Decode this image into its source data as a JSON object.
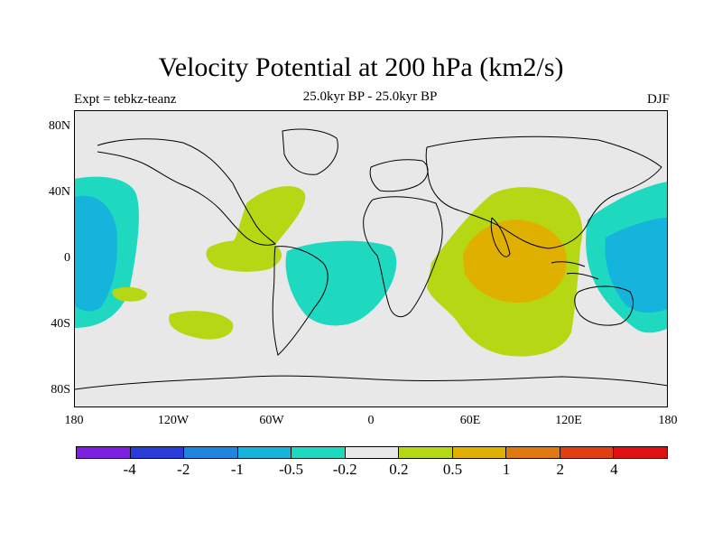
{
  "title": "Velocity Potential at 200 hPa (km2/s)",
  "subtitle": "25.0kyr BP - 25.0kyr BP",
  "left_label": "Expt = tebkz-teanz",
  "right_label": "DJF",
  "lat_labels": [
    "80N",
    "40N",
    "0",
    "40S",
    "80S"
  ],
  "lon_labels": [
    "180",
    "120W",
    "60W",
    "0",
    "60E",
    "120E",
    "180"
  ],
  "colorbar": {
    "colors": [
      "#7f1fe0",
      "#2a3cd8",
      "#1f86e0",
      "#14b4dc",
      "#1ed8c0",
      "#e8e8e8",
      "#b6d814",
      "#e0b000",
      "#e07a10",
      "#e04010",
      "#e01010"
    ],
    "labels": [
      "-4",
      "-2",
      "-1",
      "-0.5",
      "-0.2",
      "0.2",
      "0.5",
      "1",
      "2",
      "4"
    ]
  },
  "map_colors": {
    "background": "#e8e8e8",
    "neg_light": "#1ed8c0",
    "neg_mid": "#14b4dc",
    "pos_light": "#b6d814",
    "pos_mid": "#e0b000"
  }
}
